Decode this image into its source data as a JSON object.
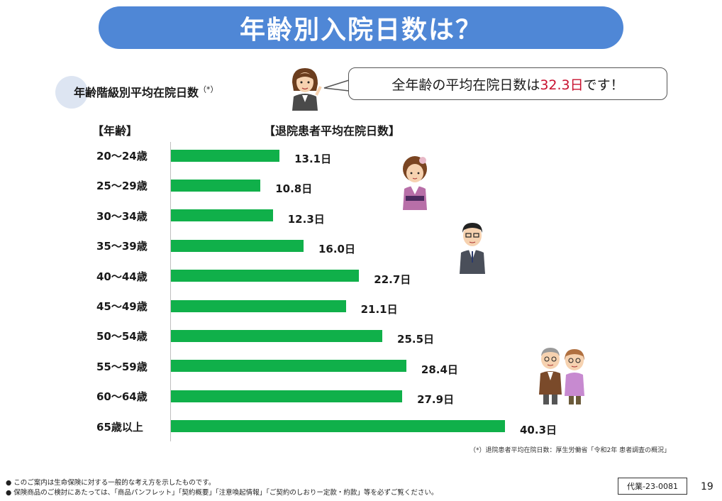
{
  "title": "年齢別入院日数は？",
  "subtitle": "年齢階級別平均在院日数",
  "subtitle_note": "（*）",
  "bubble": {
    "prefix": "全年齢の平均在院日数は",
    "value": "32.3日",
    "suffix": "です！"
  },
  "column_headers": {
    "age": "【年齢】",
    "days": "【退院患者平均在院日数】"
  },
  "footnote": "（*）退院患者平均在院日数：厚生労働省「令和2年 患者調査の概況」",
  "disclaimers": [
    "●  このご案内は生命保険に対する一般的な考え方を示したものです。",
    "●  保険商品のご検討にあたっては、「商品パンフレット」「契約概要」「注意喚起情報」「ご契約のしおりー定款・約款」等を必ずご覧ください。"
  ],
  "doc_code": "代業-23-0081",
  "page_number": "19",
  "colors": {
    "title_bg": "#4f87d6",
    "bar": "#10b04a",
    "accent": "#c8102e"
  },
  "chart_data": {
    "type": "bar",
    "orientation": "horizontal",
    "categories": [
      "20～24歳",
      "25～29歳",
      "30～34歳",
      "35～39歳",
      "40～44歳",
      "45～49歳",
      "50～54歳",
      "55～59歳",
      "60～64歳",
      "65歳以上"
    ],
    "values": [
      13.1,
      10.8,
      12.3,
      16.0,
      22.7,
      21.1,
      25.5,
      28.4,
      27.9,
      40.3
    ],
    "value_labels": [
      "13.1日",
      "10.8日",
      "12.3日",
      "16.0日",
      "22.7日",
      "21.1日",
      "25.5日",
      "28.4日",
      "27.9日",
      "40.3日"
    ],
    "xlim": [
      0,
      40.3
    ],
    "grid": false
  }
}
